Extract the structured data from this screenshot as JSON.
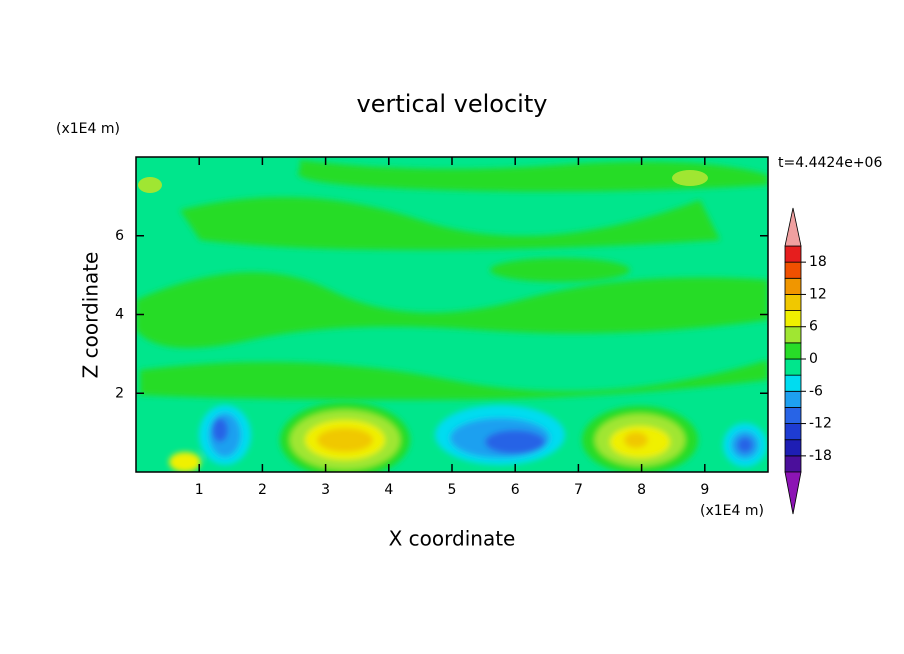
{
  "chart_data": {
    "type": "contour",
    "title": "vertical velocity",
    "x_label": "X coordinate",
    "y_label": "Z coordinate",
    "x_unit": "(x1E4 m)",
    "y_unit": "(x1E4 m)",
    "annotation": "t=4.4424e+06",
    "xlim": [
      0,
      10
    ],
    "xticks": [
      1,
      2,
      3,
      4,
      5,
      6,
      7,
      8,
      9
    ],
    "ylim": [
      0,
      8
    ],
    "yticks": [
      2,
      4,
      6
    ],
    "colorbar": {
      "clim": [
        -21,
        21
      ],
      "ticks": [
        -18,
        -12,
        -6,
        0,
        6,
        12,
        18
      ],
      "colors": [
        "#4b0f9b",
        "#1e1eb4",
        "#1e3cd2",
        "#2864e6",
        "#1ea0f0",
        "#00dcf0",
        "#00e68c",
        "#28dc28",
        "#a0e632",
        "#f0f000",
        "#f0c800",
        "#f09600",
        "#f05000",
        "#e61e1e"
      ],
      "extend_colors": [
        "#8c14b4",
        "#f0a0a0"
      ]
    }
  }
}
